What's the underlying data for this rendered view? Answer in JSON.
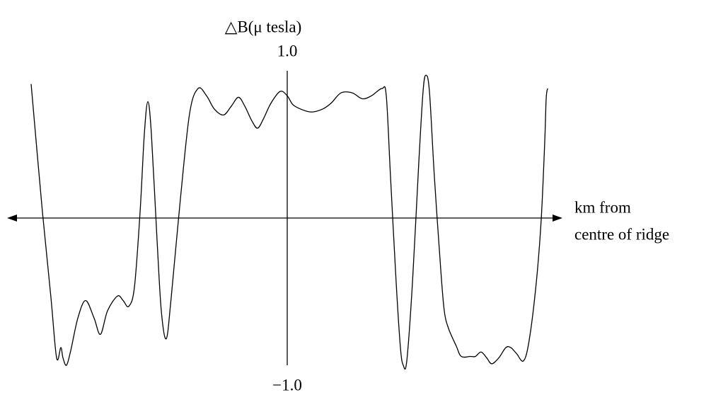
{
  "chart_data": {
    "type": "line",
    "title": "△B(μ tesla)",
    "x_label_lines": [
      "km from",
      "centre of ridge"
    ],
    "color": "#000000",
    "xlim": [
      -396,
      389
    ],
    "ylim": [
      -1,
      1
    ],
    "yticks": [
      {
        "value": 1,
        "label": "1.0"
      },
      {
        "value": -1,
        "label": "−1.0"
      }
    ],
    "x": [
      -362,
      -346,
      -334,
      -326,
      -320,
      -317,
      -312,
      -306,
      -296,
      -285,
      -273,
      -264,
      -254,
      -240,
      -232,
      -224,
      -216,
      -208,
      -202,
      -197,
      -192,
      -184,
      -178,
      -171,
      -164,
      -151,
      -138,
      -126,
      -114,
      -103,
      -90,
      -79,
      -69,
      -60,
      -50,
      -42,
      -34,
      -23,
      -10,
      0,
      8,
      19,
      34,
      50,
      62,
      76,
      92,
      106,
      119,
      134,
      140,
      146,
      154,
      160,
      164,
      169,
      177,
      186,
      192,
      196,
      201,
      208,
      217,
      222,
      228,
      239,
      246,
      259,
      266,
      274,
      282,
      289,
      299,
      309,
      316,
      324,
      334,
      342,
      352,
      359,
      364,
      366,
      368
    ],
    "values": [
      0.91,
      0.04,
      -0.54,
      -0.95,
      -0.88,
      -0.95,
      -1.0,
      -0.9,
      -0.68,
      -0.56,
      -0.68,
      -0.79,
      -0.63,
      -0.53,
      -0.56,
      -0.6,
      -0.47,
      0.04,
      0.57,
      0.79,
      0.57,
      -0.15,
      -0.63,
      -0.82,
      -0.54,
      0.13,
      0.71,
      0.88,
      0.83,
      0.74,
      0.7,
      0.76,
      0.82,
      0.76,
      0.66,
      0.61,
      0.67,
      0.78,
      0.86,
      0.83,
      0.77,
      0.74,
      0.72,
      0.74,
      0.78,
      0.85,
      0.85,
      0.81,
      0.83,
      0.88,
      0.83,
      0.28,
      -0.44,
      -0.88,
      -1.0,
      -0.97,
      -0.44,
      0.38,
      0.86,
      0.97,
      0.86,
      0.28,
      -0.35,
      -0.63,
      -0.75,
      -0.87,
      -0.94,
      -0.94,
      -0.94,
      -0.91,
      -0.95,
      -0.99,
      -0.95,
      -0.88,
      -0.88,
      -0.92,
      -0.97,
      -0.83,
      -0.44,
      -0.01,
      0.52,
      0.81,
      0.88
    ]
  }
}
